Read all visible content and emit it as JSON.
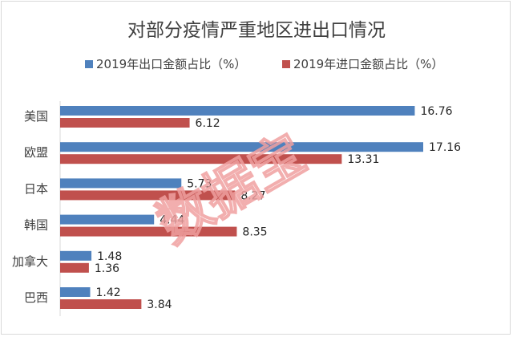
{
  "chart_data": {
    "type": "bar",
    "orientation": "horizontal",
    "title": "对部分疫情严重地区进出口情况",
    "categories": [
      "美国",
      "欧盟",
      "日本",
      "韩国",
      "加拿大",
      "巴西"
    ],
    "series": [
      {
        "name": "2019年出口金额占比（%）",
        "values": [
          16.76,
          17.16,
          5.73,
          4.44,
          1.48,
          1.42
        ],
        "color": "#4f81bd"
      },
      {
        "name": "2019年进口金额占比（%）",
        "values": [
          6.12,
          13.31,
          8.27,
          8.35,
          1.36,
          3.84
        ],
        "color": "#c0504d"
      }
    ],
    "xlim": [
      0,
      18
    ],
    "grid": false,
    "legend_position": "top"
  },
  "watermark": "数据宝"
}
